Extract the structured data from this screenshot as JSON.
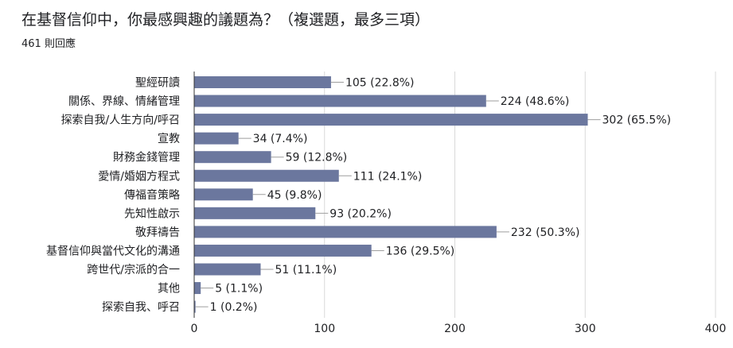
{
  "header": {
    "title": "在基督信仰中，你最感興趣的議題為？（複選題，最多三項）",
    "subtitle": "461 則回應"
  },
  "colors": {
    "bar": "#6b779e",
    "grid": "#d9d9d9",
    "axis": "#333333",
    "leader": "#9e9e9e"
  },
  "chart_data": {
    "type": "bar",
    "orientation": "horizontal",
    "title": "在基督信仰中，你最感興趣的議題為？（複選題，最多三項）",
    "subtitle": "461 則回應",
    "xlabel": "",
    "ylabel": "",
    "xlim": [
      0,
      400
    ],
    "xticks": [
      0,
      100,
      200,
      300,
      400
    ],
    "grid": true,
    "legend": "none",
    "categories": [
      "聖經研讀",
      "關係、界線、情緒管理",
      "探索自我/人生方向/呼召",
      "宣教",
      "財務金錢管理",
      "愛情/婚姻方程式",
      "傳福音策略",
      "先知性啟示",
      "敬拜禱告",
      "基督信仰與當代文化的溝通",
      "跨世代/宗派的合一",
      "其他",
      "探索自我、呼召"
    ],
    "values": [
      105,
      224,
      302,
      34,
      59,
      111,
      45,
      93,
      232,
      136,
      51,
      5,
      1
    ],
    "data_labels": [
      "105 (22.8%)",
      "224 (48.6%)",
      "302 (65.5%)",
      "34 (7.4%)",
      "59 (12.8%)",
      "111 (24.1%)",
      "45 (9.8%)",
      "93 (20.2%)",
      "232 (50.3%)",
      "136 (29.5%)",
      "51 (11.1%)",
      "5 (1.1%)",
      "1 (0.2%)"
    ]
  }
}
